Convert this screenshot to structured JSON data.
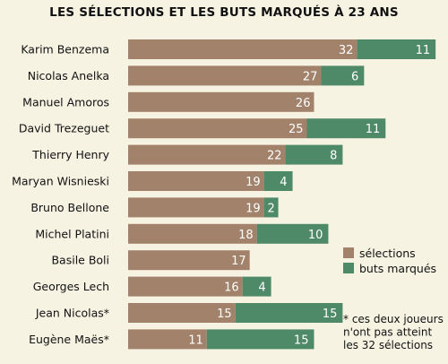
{
  "chart_data": {
    "type": "bar",
    "orientation": "horizontal",
    "stacked": true,
    "title": "LES SÉLECTIONS ET LES BUTS MARQUÉS À 23 ANS",
    "categories": [
      "Karim Benzema",
      "Nicolas Anelka",
      "Manuel Amoros",
      "David Trezeguet",
      "Thierry Henry",
      "Maryan Wisnieski",
      "Bruno Bellone",
      "Michel Platini",
      "Basile Boli",
      "Georges Lech",
      "Jean Nicolas*",
      "Eugène Maës*"
    ],
    "series": [
      {
        "name": "sélections",
        "color": "#a2826a",
        "values": [
          32,
          27,
          26,
          25,
          22,
          19,
          19,
          18,
          17,
          16,
          15,
          11
        ]
      },
      {
        "name": "buts marqués",
        "color": "#4f8a68",
        "values": [
          11,
          6,
          0,
          11,
          8,
          4,
          2,
          10,
          0,
          4,
          15,
          15
        ]
      }
    ],
    "legend_position": "right",
    "grid": false,
    "xlim": [
      0,
      43
    ],
    "note": "* ces deux joueurs n'ont pas atteint les 32 sélections"
  }
}
